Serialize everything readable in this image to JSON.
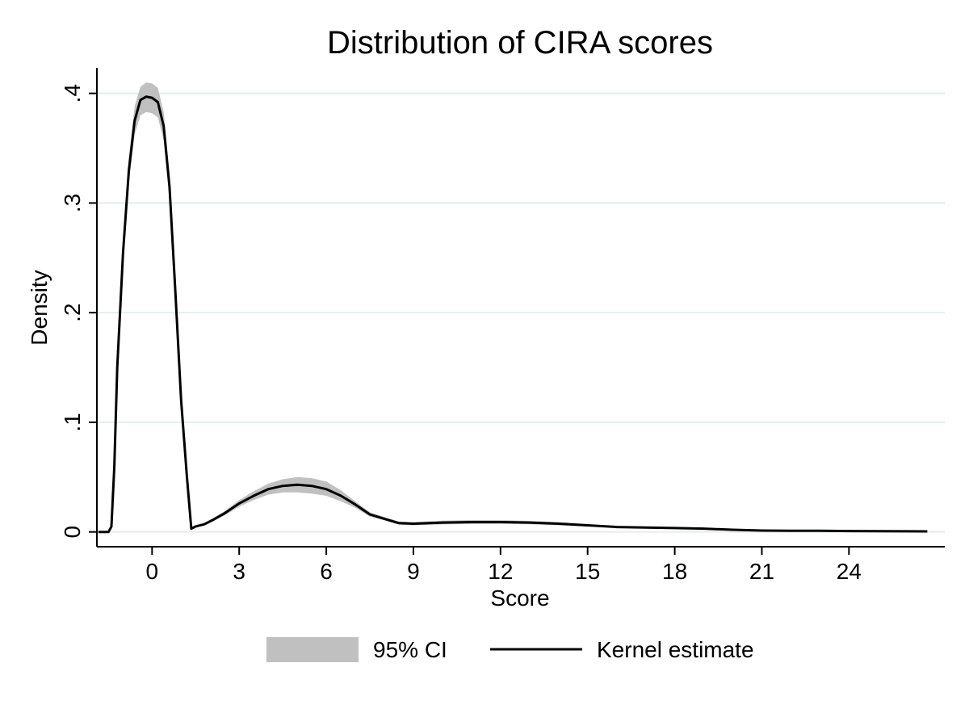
{
  "chart_data": {
    "type": "area",
    "title": "Distribution of CIRA scores",
    "xlabel": "Score",
    "ylabel": "Density",
    "xlim": [
      -1.9,
      27.3
    ],
    "ylim": [
      -0.0135,
      0.4233
    ],
    "x_ticks": [
      0,
      3,
      6,
      9,
      12,
      15,
      18,
      21,
      24
    ],
    "x_tick_labels": [
      "0",
      "3",
      "6",
      "9",
      "12",
      "15",
      "18",
      "21",
      "24"
    ],
    "y_ticks": [
      0,
      0.1,
      0.2,
      0.3,
      0.4
    ],
    "y_tick_labels": [
      "0",
      ".1",
      ".2",
      ".3",
      ".4"
    ],
    "grid": "horizontal",
    "legend_position": "bottom",
    "colors": {
      "ci_band": "#c0c0c0",
      "estimate": "#000000",
      "grid": "#e4eeee",
      "axis": "#000000"
    },
    "series": [
      {
        "name": "Kernel estimate",
        "x": [
          -1.85,
          -1.5,
          -1.4,
          -1.3,
          -1.2,
          -1.0,
          -0.8,
          -0.6,
          -0.4,
          -0.2,
          0,
          0.2,
          0.4,
          0.6,
          0.8,
          1.0,
          1.2,
          1.35,
          1.5,
          1.8,
          2.1,
          2.5,
          3.0,
          3.5,
          4.0,
          4.5,
          5.0,
          5.5,
          6.0,
          6.5,
          7.0,
          7.5,
          8.0,
          8.5,
          9.0,
          10.0,
          11.0,
          12.0,
          13.0,
          14.0,
          15.0,
          16.0,
          17.0,
          18.0,
          19.0,
          20.0,
          21.0,
          22.0,
          23.0,
          24.0,
          25.0,
          26.0,
          26.7
        ],
        "y": [
          0.0,
          0.0,
          0.005,
          0.06,
          0.15,
          0.255,
          0.33,
          0.375,
          0.394,
          0.397,
          0.396,
          0.392,
          0.37,
          0.315,
          0.22,
          0.12,
          0.05,
          0.003,
          0.005,
          0.007,
          0.011,
          0.017,
          0.026,
          0.033,
          0.039,
          0.042,
          0.043,
          0.042,
          0.039,
          0.033,
          0.025,
          0.016,
          0.012,
          0.008,
          0.0075,
          0.0085,
          0.009,
          0.009,
          0.0085,
          0.0075,
          0.006,
          0.0045,
          0.004,
          0.0035,
          0.003,
          0.002,
          0.0012,
          0.001,
          0.001,
          0.0008,
          0.0007,
          0.0006,
          0.0005
        ]
      },
      {
        "name": "95% CI",
        "x": [
          -1.85,
          -1.5,
          -1.4,
          -1.3,
          -1.2,
          -1.0,
          -0.8,
          -0.6,
          -0.4,
          -0.2,
          0,
          0.2,
          0.4,
          0.6,
          0.8,
          1.0,
          1.2,
          1.35,
          1.5,
          1.8,
          2.1,
          2.5,
          3.0,
          3.5,
          4.0,
          4.5,
          5.0,
          5.5,
          6.0,
          6.5,
          7.0,
          7.5,
          8.0,
          8.5,
          9.0,
          10.0,
          11.0,
          12.0,
          13.0,
          14.0,
          15.0,
          16.0,
          17.0,
          18.0,
          19.0,
          20.0,
          21.0,
          22.0,
          23.0,
          24.0,
          25.0,
          26.0,
          26.7
        ],
        "lower": [
          0.0,
          0.0,
          0.004,
          0.055,
          0.143,
          0.245,
          0.318,
          0.362,
          0.38,
          0.383,
          0.382,
          0.378,
          0.357,
          0.303,
          0.211,
          0.113,
          0.046,
          0.002,
          0.004,
          0.006,
          0.0095,
          0.015,
          0.023,
          0.029,
          0.034,
          0.036,
          0.036,
          0.035,
          0.033,
          0.028,
          0.022,
          0.014,
          0.0105,
          0.0065,
          0.006,
          0.0068,
          0.0072,
          0.0073,
          0.0069,
          0.006,
          0.0049,
          0.0038,
          0.0034,
          0.003,
          0.0026,
          0.0017,
          0.001,
          0.0008,
          0.0008,
          0.0006,
          0.0005,
          0.0004,
          0.0003
        ],
        "upper": [
          0.0,
          0.0,
          0.006,
          0.065,
          0.157,
          0.265,
          0.342,
          0.388,
          0.406,
          0.41,
          0.409,
          0.405,
          0.383,
          0.327,
          0.229,
          0.127,
          0.054,
          0.004,
          0.006,
          0.008,
          0.0125,
          0.019,
          0.029,
          0.037,
          0.044,
          0.048,
          0.05,
          0.049,
          0.046,
          0.038,
          0.028,
          0.018,
          0.0135,
          0.0095,
          0.009,
          0.0102,
          0.0108,
          0.0107,
          0.0101,
          0.009,
          0.0071,
          0.0052,
          0.0046,
          0.004,
          0.0034,
          0.0023,
          0.0015,
          0.0013,
          0.0013,
          0.001,
          0.0009,
          0.0008,
          0.0007
        ]
      }
    ],
    "legend": [
      {
        "label": "95% CI",
        "kind": "band"
      },
      {
        "label": "Kernel estimate",
        "kind": "line"
      }
    ]
  }
}
